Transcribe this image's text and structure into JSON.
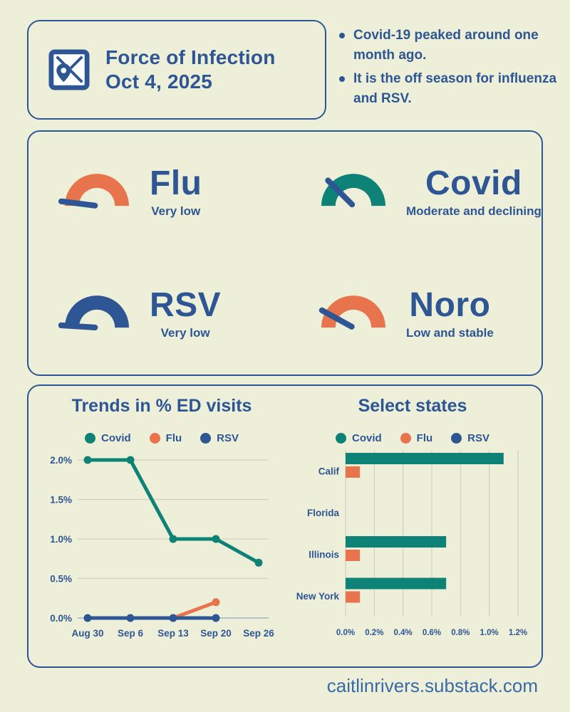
{
  "page": {
    "footer": "caitlinrivers.substack.com"
  },
  "colors": {
    "blue": "#2E5694",
    "teal": "#0F8278",
    "orange": "#E8744E",
    "grid": "#CFD2C0",
    "cream": "#EDEFD8"
  },
  "header": {
    "title_line1": "Force of Infection",
    "title_line2": "Oct 4, 2025",
    "icon": "map-icon",
    "bullets": [
      "Covid-19 peaked around one month ago.",
      "It is the off season for influenza and RSV."
    ]
  },
  "gauges": [
    {
      "name": "Flu",
      "status": "Very low",
      "color": "#E8744E",
      "fraction": 0.04
    },
    {
      "name": "Covid",
      "status": "Moderate and declining",
      "color": "#0F8278",
      "fraction": 0.25
    },
    {
      "name": "RSV",
      "status": "Very low",
      "color": "#2E5694",
      "fraction": 0.02
    },
    {
      "name": "Noro",
      "status": "Low and stable",
      "color": "#E8744E",
      "fraction": 0.16
    }
  ],
  "chart_data": [
    {
      "type": "line",
      "title": "Trends in % ED visits",
      "x": [
        "Aug 30",
        "Sep 6",
        "Sep 13",
        "Sep 20",
        "Sep 26"
      ],
      "series": [
        {
          "name": "Covid",
          "color": "#0F8278",
          "values": [
            2.0,
            2.0,
            1.0,
            1.0,
            0.7
          ]
        },
        {
          "name": "Flu",
          "color": "#E8744E",
          "values": [
            null,
            null,
            0.0,
            0.2,
            null
          ]
        },
        {
          "name": "RSV",
          "color": "#2E5694",
          "values": [
            0.0,
            0.0,
            0.0,
            0.0,
            null
          ]
        }
      ],
      "yticks": [
        "0.0%",
        "0.5%",
        "1.0%",
        "1.5%",
        "2.0%"
      ],
      "ylim": [
        0,
        2.0
      ],
      "ylabel": "% ED visits",
      "legend_position": "top",
      "grid": true
    },
    {
      "type": "bar",
      "orientation": "horizontal",
      "title": "Select states",
      "categories": [
        "Calif",
        "Florida",
        "Illinois",
        "New York"
      ],
      "series": [
        {
          "name": "Covid",
          "color": "#0F8278",
          "values": [
            1.1,
            0,
            0.7,
            0.7
          ]
        },
        {
          "name": "Flu",
          "color": "#E8744E",
          "values": [
            0.1,
            0,
            0.1,
            0.1
          ]
        },
        {
          "name": "RSV",
          "color": "#2E5694",
          "values": [
            0,
            0,
            0,
            0
          ]
        }
      ],
      "xticks": [
        "0.0%",
        "0.2%",
        "0.4%",
        "0.6%",
        "0.8%",
        "1.0%",
        "1.2%"
      ],
      "xlim": [
        0,
        1.2
      ],
      "legend_position": "top",
      "grid": true
    }
  ]
}
